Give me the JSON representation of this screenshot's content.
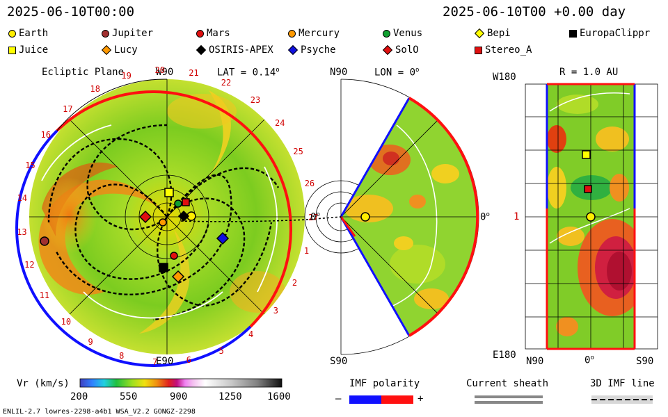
{
  "header": {
    "timestamp_left": "2025-06-10T00:00",
    "timestamp_right": "2025-06-10T00 +0.00 day"
  },
  "legend": [
    {
      "label": "Earth",
      "shape": "circle",
      "color": "#ffee00"
    },
    {
      "label": "Jupiter",
      "shape": "circle",
      "color": "#a03030"
    },
    {
      "label": "Mars",
      "shape": "circle",
      "color": "#e01010"
    },
    {
      "label": "Mercury",
      "shape": "circle",
      "color": "#ff9900"
    },
    {
      "label": "Venus",
      "shape": "circle",
      "color": "#10a030"
    },
    {
      "label": "Bepi",
      "shape": "diamond",
      "color": "#ffff00"
    },
    {
      "label": "EuropaClippr",
      "shape": "square",
      "color": "#000000"
    },
    {
      "label": "Juice",
      "shape": "square",
      "color": "#ffff00"
    },
    {
      "label": "Lucy",
      "shape": "diamond",
      "color": "#ff9900"
    },
    {
      "label": "OSIRIS-APEX",
      "shape": "diamond",
      "color": "#000000"
    },
    {
      "label": "Psyche",
      "shape": "diamond",
      "color": "#1010e0"
    },
    {
      "label": "SolO",
      "shape": "diamond",
      "color": "#e01010"
    },
    {
      "label": "Stereo_A",
      "shape": "square",
      "color": "#e01010"
    }
  ],
  "panels": {
    "ecliptic": {
      "title": "Ecliptic Plane",
      "top_label": "W90",
      "bottom_label": "E90",
      "lat": "LAT = 0.14",
      "rim_numbers": [
        "20",
        "21",
        "22",
        "23",
        "24",
        "25",
        "26",
        "27",
        "1",
        "2",
        "3",
        "4",
        "5",
        "6",
        "7",
        "8",
        "9",
        "10",
        "11",
        "12",
        "13",
        "14",
        "15",
        "16",
        "17",
        "18",
        "19"
      ]
    },
    "meridional": {
      "top_label": "N90",
      "bottom_label": "S90",
      "lon": "LON = 0",
      "right_label": "0",
      "left_label": "0"
    },
    "rsurface": {
      "title": "R = 1.0 AU",
      "top_left": "W180",
      "bottom_left": "E180",
      "mid_left": "1",
      "x_labels": [
        "N90",
        "0",
        "S90"
      ]
    }
  },
  "colorbar": {
    "title": "Vr (km/s)",
    "ticks": [
      "200",
      "550",
      "900",
      "1250",
      "1600"
    ]
  },
  "imf": {
    "title": "IMF polarity",
    "minus": "–",
    "plus": "+",
    "colors": [
      "#1010ff",
      "#ff1010"
    ]
  },
  "sheath": {
    "title": "Current sheath"
  },
  "imf3d": {
    "title": "3D IMF line"
  },
  "footer": {
    "left": "ENLIL-2.7 lowres-2298-a4b1 WSA_V2.2 GONGZ-2298"
  },
  "colors": {
    "rim_positive": "#ff1010",
    "rim_negative": "#1010ff",
    "rim_label": "#d00000"
  }
}
